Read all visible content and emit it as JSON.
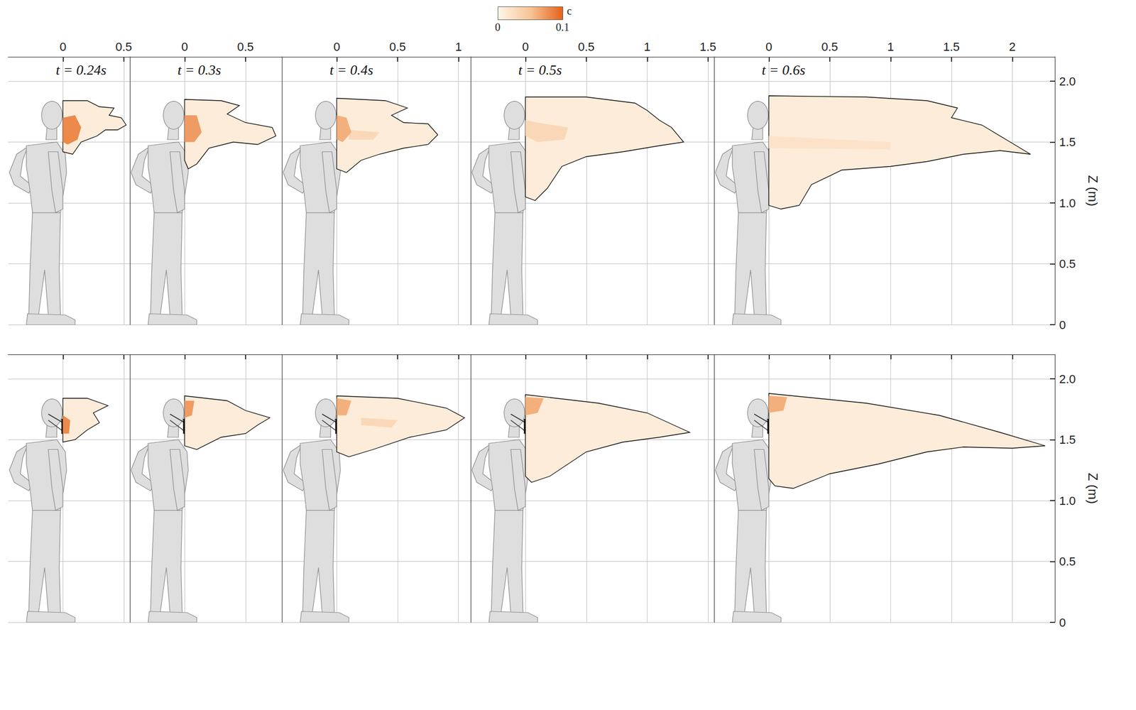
{
  "chart_data": [
    {
      "type": "contour",
      "title": "t = 0.24s",
      "xlim": [
        -0.45,
        0.55
      ],
      "xticks": [
        0,
        0.5
      ],
      "ylim": [
        0,
        2.2
      ],
      "yticks": [
        0,
        0.5,
        {
          "value": 1,
          "label": "1.0"
        },
        1.5,
        {
          "value": 2,
          "label": "2.0"
        }
      ],
      "grid": true,
      "tick_labels": "x",
      "regions": [
        {
          "c": 0.01,
          "points": [
            [
              0,
              1.84
            ],
            [
              0.2,
              1.84
            ],
            [
              0.3,
              1.79
            ],
            [
              0.42,
              1.78
            ],
            [
              0.38,
              1.72
            ],
            [
              0.48,
              1.7
            ],
            [
              0.52,
              1.64
            ],
            [
              0.45,
              1.6
            ],
            [
              0.35,
              1.6
            ],
            [
              0.28,
              1.55
            ],
            [
              0.15,
              1.5
            ],
            [
              0.08,
              1.4
            ],
            [
              0,
              1.42
            ]
          ]
        },
        {
          "c": 0.08,
          "points": [
            [
              0,
              1.7
            ],
            [
              0.1,
              1.72
            ],
            [
              0.15,
              1.62
            ],
            [
              0.12,
              1.52
            ],
            [
              0.04,
              1.48
            ],
            [
              0,
              1.5
            ]
          ]
        }
      ]
    },
    {
      "type": "contour",
      "title": "t = 0.3s",
      "xlim": [
        -0.45,
        0.8
      ],
      "xticks": [
        0,
        0.5
      ],
      "ylim": [
        0,
        2.2
      ],
      "yticks": [
        0,
        0.5,
        {
          "value": 1,
          "label": "1.0"
        },
        1.5,
        {
          "value": 2,
          "label": "2.0"
        }
      ],
      "grid": true,
      "tick_labels": "x",
      "regions": [
        {
          "c": 0.01,
          "points": [
            [
              0,
              1.85
            ],
            [
              0.3,
              1.84
            ],
            [
              0.45,
              1.8
            ],
            [
              0.35,
              1.73
            ],
            [
              0.5,
              1.66
            ],
            [
              0.72,
              1.62
            ],
            [
              0.75,
              1.55
            ],
            [
              0.6,
              1.48
            ],
            [
              0.4,
              1.5
            ],
            [
              0.2,
              1.45
            ],
            [
              0.1,
              1.32
            ],
            [
              0.03,
              1.28
            ],
            [
              0,
              1.35
            ]
          ]
        },
        {
          "c": 0.07,
          "points": [
            [
              0,
              1.72
            ],
            [
              0.1,
              1.72
            ],
            [
              0.14,
              1.58
            ],
            [
              0.08,
              1.5
            ],
            [
              0,
              1.5
            ]
          ]
        }
      ]
    },
    {
      "type": "contour",
      "title": "t = 0.4s",
      "xlim": [
        -0.45,
        1.1
      ],
      "xticks": [
        0,
        0.5,
        1
      ],
      "ylim": [
        0,
        2.2
      ],
      "yticks": [
        0,
        0.5,
        {
          "value": 1,
          "label": "1.0"
        },
        1.5,
        {
          "value": 2,
          "label": "2.0"
        }
      ],
      "grid": true,
      "tick_labels": "x",
      "regions": [
        {
          "c": 0.01,
          "points": [
            [
              0,
              1.86
            ],
            [
              0.4,
              1.84
            ],
            [
              0.58,
              1.78
            ],
            [
              0.45,
              1.72
            ],
            [
              0.55,
              1.66
            ],
            [
              0.75,
              1.65
            ],
            [
              0.83,
              1.56
            ],
            [
              0.75,
              1.48
            ],
            [
              0.55,
              1.45
            ],
            [
              0.35,
              1.4
            ],
            [
              0.2,
              1.35
            ],
            [
              0.08,
              1.25
            ],
            [
              0,
              1.28
            ]
          ]
        },
        {
          "c": 0.03,
          "points": [
            [
              0.1,
              1.6
            ],
            [
              0.35,
              1.58
            ],
            [
              0.3,
              1.52
            ],
            [
              0.1,
              1.52
            ]
          ]
        },
        {
          "c": 0.06,
          "points": [
            [
              0,
              1.72
            ],
            [
              0.08,
              1.7
            ],
            [
              0.12,
              1.58
            ],
            [
              0.05,
              1.5
            ],
            [
              0,
              1.52
            ]
          ]
        }
      ]
    },
    {
      "type": "contour",
      "title": "t = 0.5s",
      "xlim": [
        -0.45,
        1.55
      ],
      "xticks": [
        0,
        0.5,
        1,
        1.5
      ],
      "ylim": [
        0,
        2.2
      ],
      "yticks": [
        0,
        0.5,
        {
          "value": 1,
          "label": "1.0"
        },
        1.5,
        {
          "value": 2,
          "label": "2.0"
        }
      ],
      "grid": true,
      "tick_labels": "x",
      "regions": [
        {
          "c": 0.01,
          "points": [
            [
              0,
              1.87
            ],
            [
              0.5,
              1.87
            ],
            [
              0.9,
              1.82
            ],
            [
              1.0,
              1.76
            ],
            [
              1.1,
              1.68
            ],
            [
              1.2,
              1.62
            ],
            [
              1.3,
              1.5
            ],
            [
              1.1,
              1.47
            ],
            [
              0.8,
              1.42
            ],
            [
              0.5,
              1.38
            ],
            [
              0.3,
              1.3
            ],
            [
              0.18,
              1.12
            ],
            [
              0.08,
              1.02
            ],
            [
              0,
              1.05
            ]
          ]
        },
        {
          "c": 0.03,
          "points": [
            [
              0,
              1.68
            ],
            [
              0.1,
              1.66
            ],
            [
              0.35,
              1.62
            ],
            [
              0.32,
              1.52
            ],
            [
              0.1,
              1.5
            ],
            [
              0,
              1.55
            ]
          ]
        }
      ]
    },
    {
      "type": "contour",
      "title": "t = 0.6s",
      "xlim": [
        -0.45,
        2.35
      ],
      "xticks": [
        0,
        0.5,
        1,
        1.5,
        2
      ],
      "ylim": [
        0,
        2.2
      ],
      "yticks": [
        0,
        0.5,
        {
          "value": 1,
          "label": "1.0"
        },
        1.5,
        {
          "value": 2,
          "label": "2.0"
        }
      ],
      "grid": true,
      "ylabel": "Z (m)",
      "regions": [
        {
          "c": 0.01,
          "points": [
            [
              0,
              1.88
            ],
            [
              0.8,
              1.87
            ],
            [
              1.3,
              1.84
            ],
            [
              1.55,
              1.78
            ],
            [
              1.5,
              1.7
            ],
            [
              1.75,
              1.64
            ],
            [
              1.95,
              1.52
            ],
            [
              2.15,
              1.4
            ],
            [
              1.9,
              1.43
            ],
            [
              1.6,
              1.4
            ],
            [
              1.3,
              1.34
            ],
            [
              1.0,
              1.3
            ],
            [
              0.6,
              1.27
            ],
            [
              0.35,
              1.15
            ],
            [
              0.25,
              0.98
            ],
            [
              0.1,
              0.95
            ],
            [
              0,
              0.98
            ]
          ]
        },
        {
          "c": 0.02,
          "points": [
            [
              0,
              1.55
            ],
            [
              1.0,
              1.5
            ],
            [
              1.0,
              1.44
            ],
            [
              0,
              1.45
            ]
          ]
        }
      ]
    },
    {
      "type": "contour",
      "xlim": [
        -0.45,
        0.55
      ],
      "xticks": [
        0,
        0.5
      ],
      "ylim": [
        0,
        2.2
      ],
      "yticks": [
        0,
        0.5,
        {
          "value": 1,
          "label": "1.0"
        },
        1.5,
        {
          "value": 2,
          "label": "2.0"
        }
      ],
      "grid": true,
      "tick_labels": false,
      "regions": [
        {
          "c": 0.01,
          "points": [
            [
              0,
              1.84
            ],
            [
              0.2,
              1.84
            ],
            [
              0.37,
              1.78
            ],
            [
              0.25,
              1.72
            ],
            [
              0.3,
              1.64
            ],
            [
              0.2,
              1.58
            ],
            [
              0.1,
              1.5
            ],
            [
              0,
              1.48
            ]
          ]
        },
        {
          "c": 0.08,
          "points": [
            [
              0,
              1.7
            ],
            [
              0.06,
              1.66
            ],
            [
              0.05,
              1.55
            ],
            [
              0,
              1.55
            ]
          ]
        }
      ]
    },
    {
      "type": "contour",
      "xlim": [
        -0.45,
        0.8
      ],
      "xticks": [
        0,
        0.5
      ],
      "ylim": [
        0,
        2.2
      ],
      "yticks": [
        0,
        0.5,
        {
          "value": 1,
          "label": "1.0"
        },
        1.5,
        {
          "value": 2,
          "label": "2.0"
        }
      ],
      "grid": true,
      "tick_labels": false,
      "regions": [
        {
          "c": 0.01,
          "points": [
            [
              0,
              1.86
            ],
            [
              0.35,
              1.82
            ],
            [
              0.5,
              1.74
            ],
            [
              0.7,
              1.68
            ],
            [
              0.6,
              1.62
            ],
            [
              0.5,
              1.55
            ],
            [
              0.3,
              1.52
            ],
            [
              0.1,
              1.42
            ],
            [
              0,
              1.45
            ]
          ]
        },
        {
          "c": 0.07,
          "points": [
            [
              0,
              1.82
            ],
            [
              0.08,
              1.82
            ],
            [
              0.06,
              1.7
            ],
            [
              0,
              1.68
            ]
          ]
        }
      ]
    },
    {
      "type": "contour",
      "xlim": [
        -0.45,
        1.1
      ],
      "xticks": [
        0,
        0.5,
        1
      ],
      "ylim": [
        0,
        2.2
      ],
      "yticks": [
        0,
        0.5,
        {
          "value": 1,
          "label": "1.0"
        },
        1.5,
        {
          "value": 2,
          "label": "2.0"
        }
      ],
      "grid": true,
      "tick_labels": false,
      "regions": [
        {
          "c": 0.01,
          "points": [
            [
              0,
              1.86
            ],
            [
              0.5,
              1.84
            ],
            [
              0.9,
              1.76
            ],
            [
              1.05,
              1.68
            ],
            [
              0.9,
              1.58
            ],
            [
              0.6,
              1.52
            ],
            [
              0.3,
              1.42
            ],
            [
              0.1,
              1.36
            ],
            [
              0,
              1.4
            ]
          ]
        },
        {
          "c": 0.03,
          "points": [
            [
              0.2,
              1.68
            ],
            [
              0.5,
              1.66
            ],
            [
              0.45,
              1.6
            ],
            [
              0.2,
              1.62
            ]
          ]
        },
        {
          "c": 0.06,
          "points": [
            [
              0,
              1.84
            ],
            [
              0.12,
              1.82
            ],
            [
              0.08,
              1.7
            ],
            [
              0,
              1.7
            ]
          ]
        }
      ]
    },
    {
      "type": "contour",
      "xlim": [
        -0.45,
        1.55
      ],
      "xticks": [
        0,
        0.5,
        1,
        1.5
      ],
      "ylim": [
        0,
        2.2
      ],
      "yticks": [
        0,
        0.5,
        {
          "value": 1,
          "label": "1.0"
        },
        1.5,
        {
          "value": 2,
          "label": "2.0"
        }
      ],
      "grid": true,
      "tick_labels": false,
      "regions": [
        {
          "c": 0.01,
          "points": [
            [
              0,
              1.87
            ],
            [
              0.6,
              1.8
            ],
            [
              1.0,
              1.72
            ],
            [
              1.35,
              1.56
            ],
            [
              1.1,
              1.52
            ],
            [
              0.8,
              1.48
            ],
            [
              0.5,
              1.4
            ],
            [
              0.2,
              1.2
            ],
            [
              0.05,
              1.15
            ],
            [
              0,
              1.2
            ]
          ]
        },
        {
          "c": 0.06,
          "points": [
            [
              0,
              1.85
            ],
            [
              0.15,
              1.84
            ],
            [
              0.1,
              1.72
            ],
            [
              0,
              1.7
            ]
          ]
        }
      ]
    },
    {
      "type": "contour",
      "xlim": [
        -0.45,
        2.35
      ],
      "xticks": [
        0,
        0.5,
        1,
        1.5,
        2
      ],
      "ylim": [
        0,
        2.2
      ],
      "yticks": [
        0,
        0.5,
        {
          "value": 1,
          "label": "1.0"
        },
        1.5,
        {
          "value": 2,
          "label": "2.0"
        }
      ],
      "grid": true,
      "tick_labels": "y",
      "ylabel": "Z (m)",
      "regions": [
        {
          "c": 0.01,
          "points": [
            [
              0,
              1.88
            ],
            [
              0.8,
              1.8
            ],
            [
              1.4,
              1.7
            ],
            [
              1.9,
              1.56
            ],
            [
              2.27,
              1.45
            ],
            [
              2.0,
              1.43
            ],
            [
              1.6,
              1.44
            ],
            [
              1.3,
              1.4
            ],
            [
              0.9,
              1.3
            ],
            [
              0.5,
              1.22
            ],
            [
              0.2,
              1.1
            ],
            [
              0.05,
              1.12
            ],
            [
              0,
              1.18
            ]
          ]
        },
        {
          "c": 0.06,
          "points": [
            [
              0,
              1.86
            ],
            [
              0.15,
              1.85
            ],
            [
              0.12,
              1.74
            ],
            [
              0,
              1.72
            ]
          ]
        }
      ]
    }
  ],
  "colorbar": {
    "label": "c",
    "range": [
      0,
      0.1
    ],
    "ticks": [
      0,
      0.1
    ],
    "colors": [
      "#fff6ea",
      "#f7c495",
      "#e4611a"
    ]
  }
}
